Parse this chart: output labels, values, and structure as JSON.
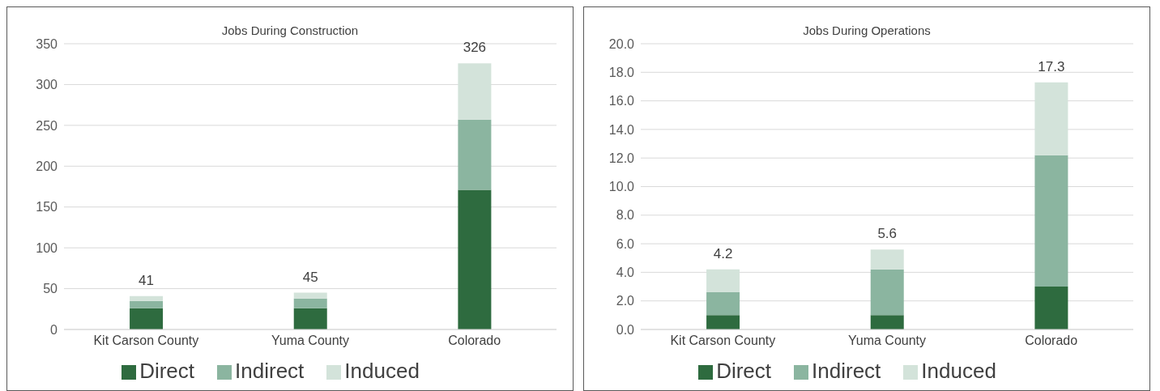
{
  "chart_data": [
    {
      "type": "bar",
      "title": "Jobs During Construction",
      "stacked": true,
      "categories": [
        "Kit Carson County",
        "Yuma County",
        "Colorado"
      ],
      "series": [
        {
          "name": "Direct",
          "color": "#2e6b3f",
          "values": [
            26,
            26,
            171
          ]
        },
        {
          "name": "Indirect",
          "color": "#8bb5a0",
          "values": [
            9,
            12,
            86
          ]
        },
        {
          "name": "Induced",
          "color": "#d3e3da",
          "values": [
            6,
            7,
            69
          ]
        }
      ],
      "totals": [
        "41",
        "45",
        "326"
      ],
      "ylim": [
        0,
        350
      ],
      "yticks": [
        0,
        50,
        100,
        150,
        200,
        250,
        300,
        350
      ],
      "grid": "y",
      "legend": "bottom"
    },
    {
      "type": "bar",
      "title": "Jobs During Operations",
      "stacked": true,
      "categories": [
        "Kit Carson County",
        "Yuma County",
        "Colorado"
      ],
      "series": [
        {
          "name": "Direct",
          "color": "#2e6b3f",
          "values": [
            1.0,
            1.0,
            3.0
          ]
        },
        {
          "name": "Indirect",
          "color": "#8bb5a0",
          "values": [
            1.6,
            3.2,
            9.2
          ]
        },
        {
          "name": "Induced",
          "color": "#d3e3da",
          "values": [
            1.6,
            1.4,
            5.1
          ]
        }
      ],
      "totals": [
        "4.2",
        "5.6",
        "17.3"
      ],
      "ylim": [
        0,
        20
      ],
      "yticks": [
        {
          "value": 0,
          "label": "0.0"
        },
        {
          "value": 2,
          "label": "2.0"
        },
        {
          "value": 4,
          "label": "4.0"
        },
        {
          "value": 6,
          "label": "6.0"
        },
        {
          "value": 8,
          "label": "8.0"
        },
        {
          "value": 10,
          "label": "10.0"
        },
        {
          "value": 12,
          "label": "12.0"
        },
        {
          "value": 14,
          "label": "14.0"
        },
        {
          "value": 16,
          "label": "16.0"
        },
        {
          "value": 18,
          "label": "18.0"
        },
        {
          "value": 20,
          "label": "20.0"
        }
      ],
      "grid": "y",
      "legend": "bottom"
    }
  ]
}
